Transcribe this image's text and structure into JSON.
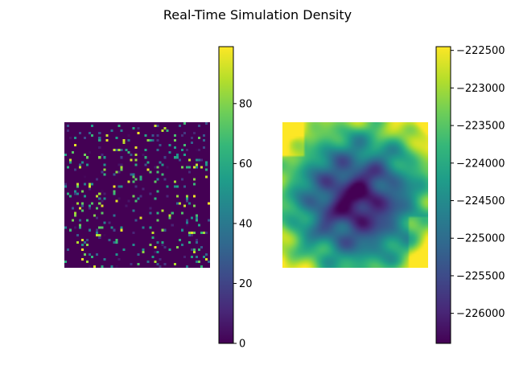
{
  "figure": {
    "title": "Real-Time Simulation Density"
  },
  "colormap": {
    "name": "viridis",
    "stops": [
      "#440154",
      "#482878",
      "#3e4a89",
      "#31688e",
      "#26828e",
      "#1f9e89",
      "#35b779",
      "#6ece58",
      "#b5de2b",
      "#fde725"
    ]
  },
  "chart_data": [
    {
      "type": "heatmap",
      "panel": "left",
      "description": "Sparse random particle field on a 60x60 grid, mostly zeros with scattered high values",
      "grid_size": [
        60,
        60
      ],
      "value_range": [
        0,
        99
      ],
      "colorbar": {
        "ticks": [
          0,
          20,
          40,
          60,
          80
        ],
        "tick_labels": [
          "0",
          "20",
          "40",
          "60",
          "80"
        ]
      }
    },
    {
      "type": "heatmap",
      "panel": "right",
      "description": "Smooth potential field with low values in the center and high values at the corners",
      "grid_size": [
        60,
        60
      ],
      "value_range": [
        -226400,
        -222450
      ],
      "colorbar": {
        "ticks": [
          -226000,
          -225500,
          -225000,
          -224500,
          -224000,
          -223500,
          -223000,
          -222500
        ],
        "tick_labels": [
          "−226000",
          "−225500",
          "−225000",
          "−224500",
          "−224000",
          "−223500",
          "−223000",
          "−222500"
        ]
      }
    }
  ]
}
